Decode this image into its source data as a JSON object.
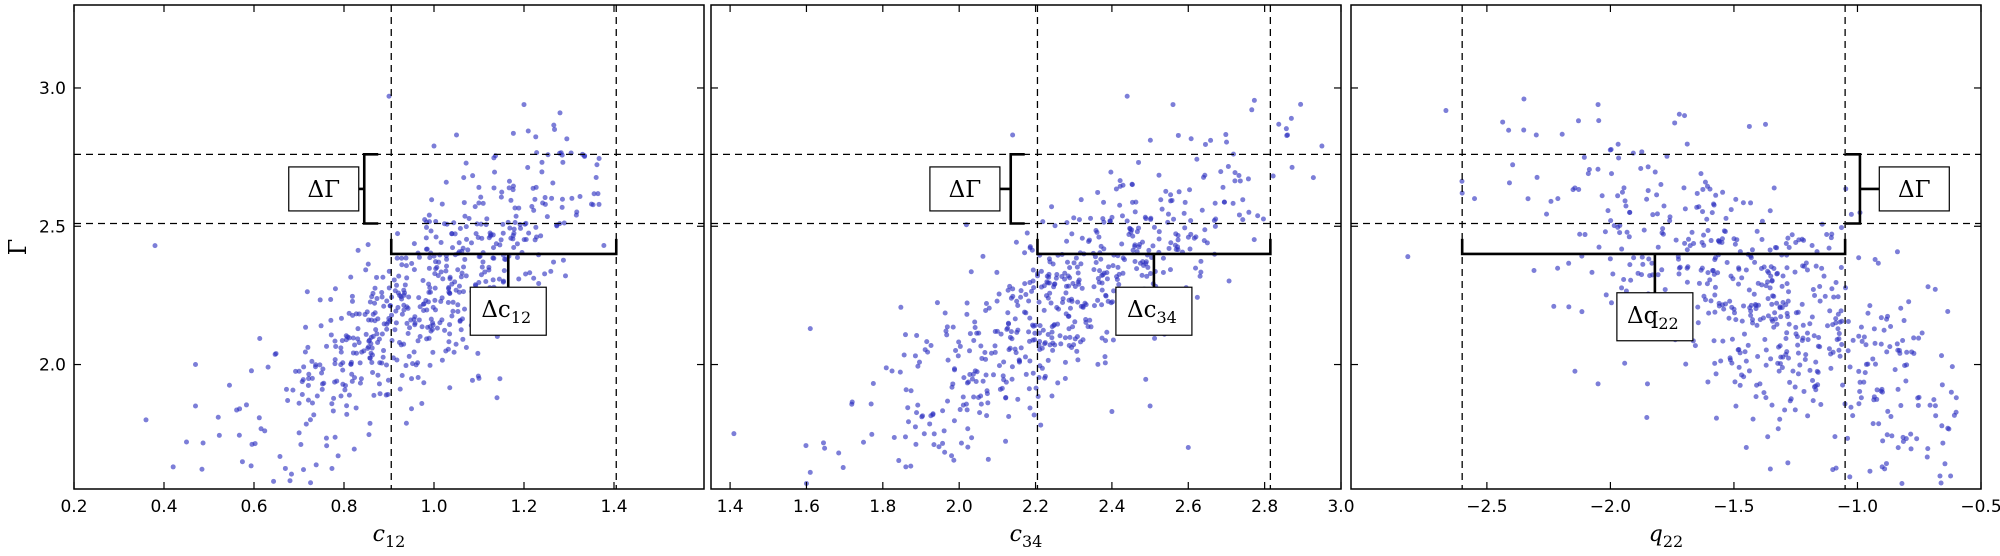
{
  "figure": {
    "ylabel": "Γ"
  },
  "chart_data": [
    {
      "type": "scatter",
      "xlabel_main": "c",
      "xlabel_sub": "12",
      "xlim": [
        0.2,
        1.6
      ],
      "ylim": [
        1.55,
        3.3
      ],
      "xticks": [
        "0.2",
        "0.4",
        "0.6",
        "0.8",
        "1.0",
        "1.2",
        "1.4"
      ],
      "yticks": [
        "2.0",
        "2.5",
        "3.0"
      ],
      "hlines": [
        2.51,
        2.76
      ],
      "vlines": [
        0.905,
        1.405
      ],
      "delta_gamma": {
        "label": "ΔΓ",
        "bracket_side": "left",
        "bracket_x": 0.845,
        "box_x": 0.755
      },
      "delta_x": {
        "label_main": "Δc",
        "label_sub": "12",
        "y": 2.4,
        "x_from": 0.905,
        "x_to": 1.405,
        "stem_x": 1.165,
        "box_y": 2.2
      },
      "points_spec": {
        "count": 560,
        "x_mean": 0.98,
        "x_sd": 0.19,
        "y_at_mean": 2.24,
        "slope": 1.18,
        "resid_sd": 0.155,
        "x_range": [
          0.37,
          1.38
        ],
        "y_range": [
          1.57,
          2.97
        ]
      },
      "points": [
        [
          0.38,
          2.43
        ],
        [
          0.36,
          1.8
        ],
        [
          0.45,
          1.72
        ],
        [
          0.47,
          1.85
        ],
        [
          0.47,
          2.0
        ],
        [
          1.05,
          2.83
        ],
        [
          1.2,
          2.94
        ],
        [
          1.28,
          2.91
        ],
        [
          1.0,
          2.79
        ],
        [
          1.33,
          2.76
        ],
        [
          0.9,
          2.97
        ],
        [
          1.35,
          2.58
        ],
        [
          0.95,
          1.84
        ],
        [
          1.1,
          1.95
        ],
        [
          1.14,
          1.88
        ],
        [
          0.68,
          1.58
        ],
        [
          0.71,
          1.62
        ]
      ]
    },
    {
      "type": "scatter",
      "xlabel_main": "c",
      "xlabel_sub": "34",
      "xlim": [
        1.35,
        3.0
      ],
      "ylim": [
        1.55,
        3.3
      ],
      "xticks": [
        "1.4",
        "1.6",
        "1.8",
        "2.0",
        "2.2",
        "2.4",
        "2.6",
        "2.8",
        "3.0"
      ],
      "yticks": [
        "2.0",
        "2.5",
        "3.0"
      ],
      "hlines": [
        2.51,
        2.76
      ],
      "vlines": [
        2.205,
        2.815
      ],
      "delta_gamma": {
        "label": "ΔΓ",
        "bracket_side": "left",
        "bracket_x": 2.135,
        "box_x": 2.015
      },
      "delta_x": {
        "label_main": "Δc",
        "label_sub": "34",
        "y": 2.4,
        "x_from": 2.205,
        "x_to": 2.815,
        "stem_x": 2.51,
        "box_y": 2.2
      },
      "points_spec": {
        "count": 560,
        "x_mean": 2.28,
        "x_sd": 0.25,
        "y_at_mean": 2.24,
        "slope": 0.92,
        "resid_sd": 0.16,
        "x_range": [
          1.42,
          2.95
        ],
        "y_range": [
          1.57,
          2.97
        ]
      },
      "points": [
        [
          1.41,
          1.75
        ],
        [
          1.6,
          1.57
        ],
        [
          1.61,
          1.61
        ],
        [
          1.61,
          2.13
        ],
        [
          2.95,
          2.79
        ],
        [
          2.87,
          2.89
        ],
        [
          2.86,
          2.83
        ],
        [
          2.44,
          2.97
        ],
        [
          2.56,
          2.94
        ],
        [
          2.14,
          2.83
        ],
        [
          2.65,
          2.44
        ],
        [
          2.6,
          1.7
        ],
        [
          2.4,
          1.83
        ],
        [
          2.5,
          1.85
        ]
      ]
    },
    {
      "type": "scatter",
      "xlabel_main": "q",
      "xlabel_sub": "22",
      "xlim": [
        -3.05,
        -0.5
      ],
      "ylim": [
        1.55,
        3.3
      ],
      "xticks": [
        "−2.5",
        "−2.0",
        "−1.5",
        "−1.0",
        "−0.5"
      ],
      "yticks": [
        "2.0",
        "2.5",
        "3.0"
      ],
      "hlines": [
        2.51,
        2.76
      ],
      "vlines": [
        -2.6,
        -1.05
      ],
      "delta_gamma": {
        "label": "ΔΓ",
        "bracket_side": "right",
        "bracket_x": -0.99,
        "box_x": -0.77
      },
      "delta_x": {
        "label_main": "Δq",
        "label_sub": "22",
        "y": 2.4,
        "x_from": -2.6,
        "x_to": -1.05,
        "stem_x": -1.82,
        "box_y": 2.18
      },
      "points_spec": {
        "count": 560,
        "x_mean": -1.35,
        "x_sd": 0.5,
        "y_at_mean": 2.2,
        "slope": -0.5,
        "resid_sd": 0.22,
        "x_range": [
          -2.85,
          -0.6
        ],
        "y_range": [
          1.57,
          2.97
        ]
      },
      "points": [
        [
          -2.82,
          2.39
        ],
        [
          -2.6,
          2.62
        ],
        [
          -2.55,
          2.6
        ],
        [
          -2.35,
          2.96
        ],
        [
          -2.3,
          2.83
        ],
        [
          -2.05,
          2.94
        ],
        [
          -1.7,
          2.9
        ],
        [
          -1.85,
          1.93
        ],
        [
          -2.05,
          1.93
        ],
        [
          -1.45,
          1.7
        ],
        [
          -0.6,
          1.88
        ],
        [
          -0.62,
          1.9
        ],
        [
          -0.82,
          1.57
        ],
        [
          -0.9,
          1.63
        ],
        [
          -1.1,
          1.62
        ]
      ]
    }
  ]
}
